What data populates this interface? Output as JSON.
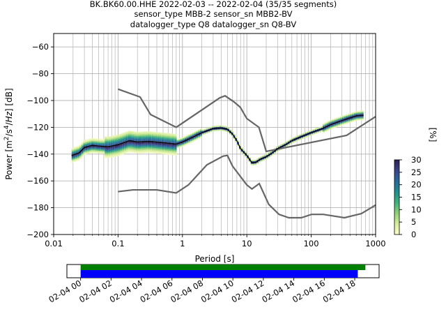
{
  "title": {
    "line1": "BK.BK60.00.HHE   2022-02-03 -- 2022-02-04  (35/35 segments)",
    "line2": "sensor_type MBB-2 sensor_sn MBB2-BV",
    "line3": "datalogger_type Q8 datalogger_sn Q8-BV"
  },
  "colors": {
    "grid": "#b4b4b4",
    "noise_model": "#666666",
    "mean_curve": "#000000",
    "coverage_data": "#008000",
    "coverage_gaps_bar": "#0000ff",
    "colormap": [
      "#ffffcc",
      "#d7ee9b",
      "#90d277",
      "#3fb17c",
      "#1f8e8c",
      "#266a9a",
      "#37448c",
      "#2d1e4f"
    ]
  },
  "chart_data": [
    {
      "type": "heatmap",
      "title": "BK.BK60.00.HHE   2022-02-03 -- 2022-02-04  (35/35 segments)",
      "xlabel": "Period [s]",
      "ylabel": "Power [m²/s⁴/Hz] [dB]",
      "x_scale": "log",
      "xlim": [
        0.01,
        1000
      ],
      "ylim": [
        -200,
        -50
      ],
      "x_ticks": [
        0.01,
        0.1,
        1,
        10,
        100,
        1000
      ],
      "x_tick_labels": [
        "0.01",
        "0.1",
        "1",
        "10",
        "100",
        "1000"
      ],
      "y_ticks": [
        -200,
        -180,
        -160,
        -140,
        -120,
        -100,
        -80,
        -60
      ],
      "y_tick_labels": [
        "−200",
        "−180",
        "−160",
        "−140",
        "−120",
        "−100",
        "−80",
        "−60"
      ],
      "grid": true,
      "colorbar": {
        "label": "[%]",
        "range": [
          0,
          30
        ],
        "ticks": [
          0,
          5,
          10,
          15,
          20,
          25,
          30
        ],
        "tick_labels": [
          "0",
          "5",
          "10",
          "15",
          "20",
          "25",
          "30"
        ]
      },
      "series": [
        {
          "role": "mean_psd",
          "x": [
            0.019,
            0.025,
            0.03,
            0.04,
            0.05,
            0.07,
            0.1,
            0.15,
            0.2,
            0.3,
            0.5,
            0.8,
            1.0,
            1.5,
            2.0,
            3.0,
            4.0,
            5.0,
            6.0,
            7.0,
            8.0,
            10.0,
            12.0,
            14.0,
            16.0,
            20.0,
            25.0,
            30.0,
            40.0,
            50.0,
            70.0,
            100.0,
            150.0,
            200.0,
            300.0,
            400.0,
            500.0,
            650.0
          ],
          "y": [
            -141,
            -139,
            -135,
            -133.5,
            -134,
            -134.5,
            -133,
            -130,
            -131,
            -130.5,
            -131.5,
            -132.5,
            -131,
            -127,
            -124,
            -121,
            -120.5,
            -121.5,
            -125,
            -130,
            -136,
            -141,
            -146.5,
            -146,
            -144,
            -142,
            -139,
            -136,
            -133,
            -130,
            -127,
            -124,
            -121,
            -118,
            -115,
            -113,
            -111.5,
            -111
          ]
        },
        {
          "role": "high_noise_model",
          "x": [
            0.1,
            0.22,
            0.32,
            0.8,
            3.8,
            4.6,
            6.3,
            7.9,
            10,
            15.4,
            20,
            354.8,
            1000
          ],
          "y": [
            -91.5,
            -97.4,
            -110.5,
            -120,
            -98,
            -96.5,
            -101,
            -105,
            -113.5,
            -120,
            -138,
            -126,
            -112
          ]
        },
        {
          "role": "low_noise_model",
          "x": [
            0.1,
            0.17,
            0.4,
            0.8,
            1.24,
            2.4,
            4.3,
            5.0,
            6.0,
            10.0,
            12.0,
            15.6,
            21.9,
            31.6,
            45.0,
            70.0,
            101.0,
            154.0,
            328.0,
            600.0,
            1000.0
          ],
          "y": [
            -168,
            -166.7,
            -166.7,
            -169,
            -163,
            -148,
            -141.5,
            -141,
            -149,
            -163,
            -166,
            -162,
            -177.5,
            -185,
            -187.5,
            -187.5,
            -185,
            -185,
            -187.5,
            -184.4,
            -178
          ]
        }
      ]
    },
    {
      "type": "bar",
      "role": "data_coverage_timeline",
      "x_tick_labels": [
        "02-04 00",
        "02-04 02",
        "02-04 04",
        "02-04 06",
        "02-04 08",
        "02-04 10",
        "02-04 12",
        "02-04 14",
        "02-04 16",
        "02-04 18"
      ],
      "series": [
        {
          "role": "data_availability",
          "start_hour": 0.0,
          "end_hour": 18.7
        },
        {
          "role": "psd_segments",
          "start_hour": 0.0,
          "end_hour": 18.2
        }
      ],
      "xlim_hours": [
        -0.9,
        19.6
      ]
    }
  ]
}
